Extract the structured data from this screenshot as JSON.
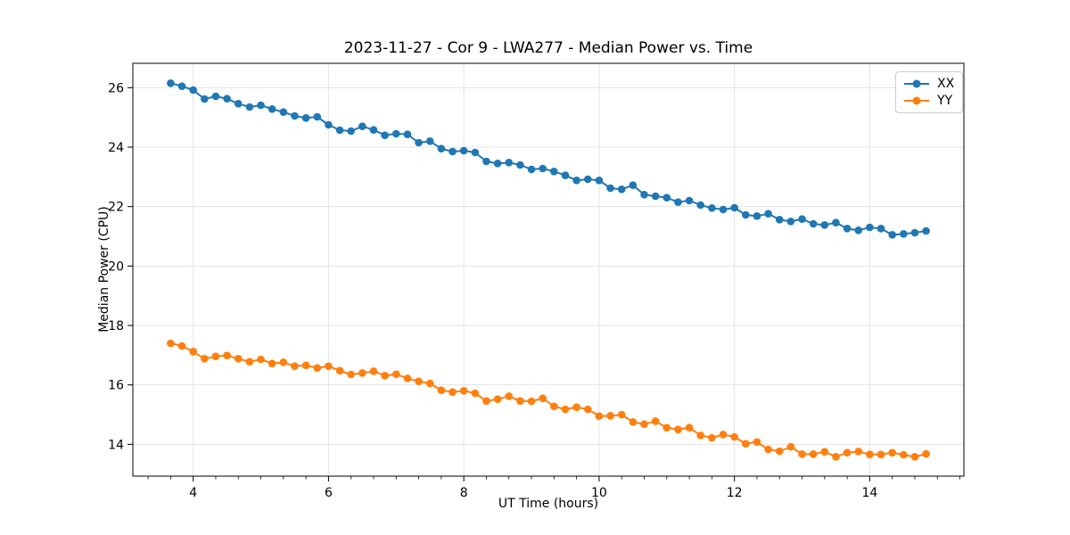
{
  "chart_data": {
    "type": "line",
    "title": "2023-11-27 - Cor 9 - LWA277 - Median Power vs. Time",
    "xlabel": "UT Time (hours)",
    "ylabel": "Median Power (CPU)",
    "xlim": [
      3.108,
      15.392
    ],
    "ylim": [
      12.93,
      26.82
    ],
    "xticks": [
      4,
      6,
      8,
      10,
      12,
      14
    ],
    "yticks": [
      14,
      16,
      18,
      20,
      22,
      24,
      26
    ],
    "x_minor_tick_step": 0.3333,
    "grid": true,
    "grid_color": "#e3e3e3",
    "legend_position": "upper right",
    "marker": "circle",
    "x": [
      3.6667,
      3.8333,
      4.0,
      4.1667,
      4.3333,
      4.5,
      4.6667,
      4.8333,
      5.0,
      5.1667,
      5.3333,
      5.5,
      5.6667,
      5.8333,
      6.0,
      6.1667,
      6.3333,
      6.5,
      6.6667,
      6.8333,
      7.0,
      7.1667,
      7.3333,
      7.5,
      7.6667,
      7.8333,
      8.0,
      8.1667,
      8.3333,
      8.5,
      8.6667,
      8.8333,
      9.0,
      9.1667,
      9.3333,
      9.5,
      9.6667,
      9.8333,
      10.0,
      10.1667,
      10.3333,
      10.5,
      10.6667,
      10.8333,
      11.0,
      11.1667,
      11.3333,
      11.5,
      11.6667,
      11.8333,
      12.0,
      12.1667,
      12.3333,
      12.5,
      12.6667,
      12.8333,
      13.0,
      13.1667,
      13.3333,
      13.5,
      13.6667,
      13.8333,
      14.0,
      14.1667,
      14.3333,
      14.5,
      14.6667,
      14.8333
    ],
    "series": [
      {
        "name": "XX",
        "color": "#1f77b4",
        "values": [
          26.15,
          26.05,
          25.92,
          25.62,
          25.71,
          25.63,
          25.46,
          25.35,
          25.41,
          25.28,
          25.18,
          25.05,
          24.98,
          25.02,
          24.75,
          24.57,
          24.54,
          24.7,
          24.58,
          24.4,
          24.45,
          24.43,
          24.15,
          24.2,
          23.95,
          23.85,
          23.88,
          23.82,
          23.52,
          23.45,
          23.48,
          23.4,
          23.25,
          23.28,
          23.18,
          23.05,
          22.88,
          22.92,
          22.88,
          22.62,
          22.58,
          22.72,
          22.4,
          22.35,
          22.3,
          22.15,
          22.2,
          22.05,
          21.95,
          21.9,
          21.96,
          21.72,
          21.68,
          21.76,
          21.56,
          21.5,
          21.58,
          21.42,
          21.38,
          21.46,
          21.26,
          21.2,
          21.3,
          21.26,
          21.05,
          21.08,
          21.12,
          21.18
        ]
      },
      {
        "name": "YY",
        "color": "#ff7f0e",
        "values": [
          17.4,
          17.31,
          17.12,
          16.88,
          16.96,
          16.99,
          16.88,
          16.78,
          16.86,
          16.72,
          16.76,
          16.63,
          16.66,
          16.57,
          16.63,
          16.48,
          16.35,
          16.4,
          16.46,
          16.31,
          16.36,
          16.22,
          16.12,
          16.05,
          15.82,
          15.76,
          15.8,
          15.72,
          15.46,
          15.52,
          15.62,
          15.46,
          15.45,
          15.55,
          15.28,
          15.18,
          15.25,
          15.18,
          14.95,
          14.96,
          15.0,
          14.75,
          14.68,
          14.78,
          14.56,
          14.5,
          14.56,
          14.3,
          14.22,
          14.33,
          14.25,
          14.02,
          14.08,
          13.83,
          13.77,
          13.92,
          13.67,
          13.67,
          13.75,
          13.58,
          13.72,
          13.76,
          13.66,
          13.66,
          13.72,
          13.65,
          13.58,
          13.68
        ]
      }
    ]
  }
}
